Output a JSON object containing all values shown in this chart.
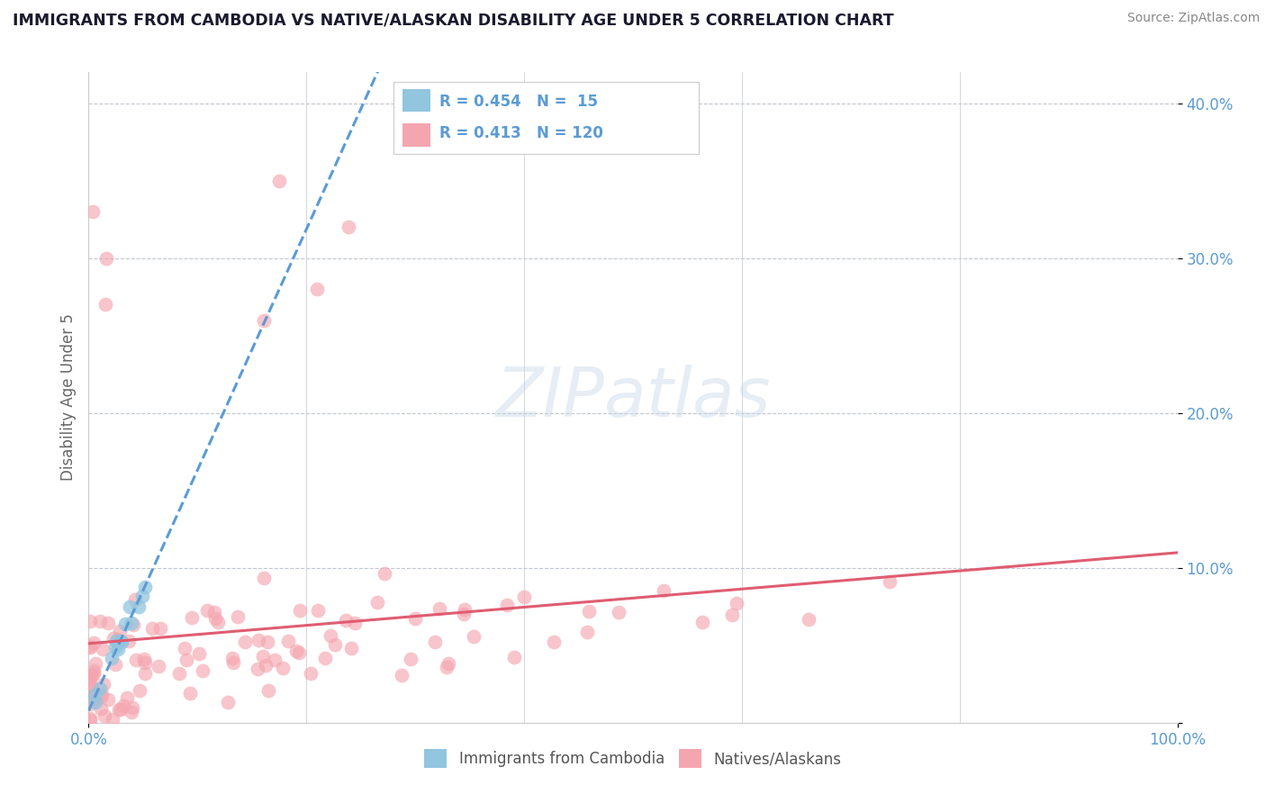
{
  "title": "IMMIGRANTS FROM CAMBODIA VS NATIVE/ALASKAN DISABILITY AGE UNDER 5 CORRELATION CHART",
  "source": "Source: ZipAtlas.com",
  "ylabel": "Disability Age Under 5",
  "xlim": [
    0.0,
    1.0
  ],
  "ylim": [
    0.0,
    0.42
  ],
  "r_cambodia": 0.454,
  "n_cambodia": 15,
  "r_native": 0.413,
  "n_native": 120,
  "color_cambodia": "#92c5de",
  "color_native": "#f4a6b0",
  "trendline_cambodia_color": "#5b9bd5",
  "trendline_native_color": "#e05c72",
  "background_color": "#ffffff",
  "title_color": "#1a1a2e",
  "axis_tick_color": "#5b9bd5",
  "legend_r_color": "#5b9bd5",
  "watermark_color": "#c8d8e8",
  "grid_color": "#c0c8d0",
  "ylabel_color": "#666666",
  "source_color": "#888888",
  "bottom_legend_color": "#555555",
  "spine_color": "#cccccc"
}
